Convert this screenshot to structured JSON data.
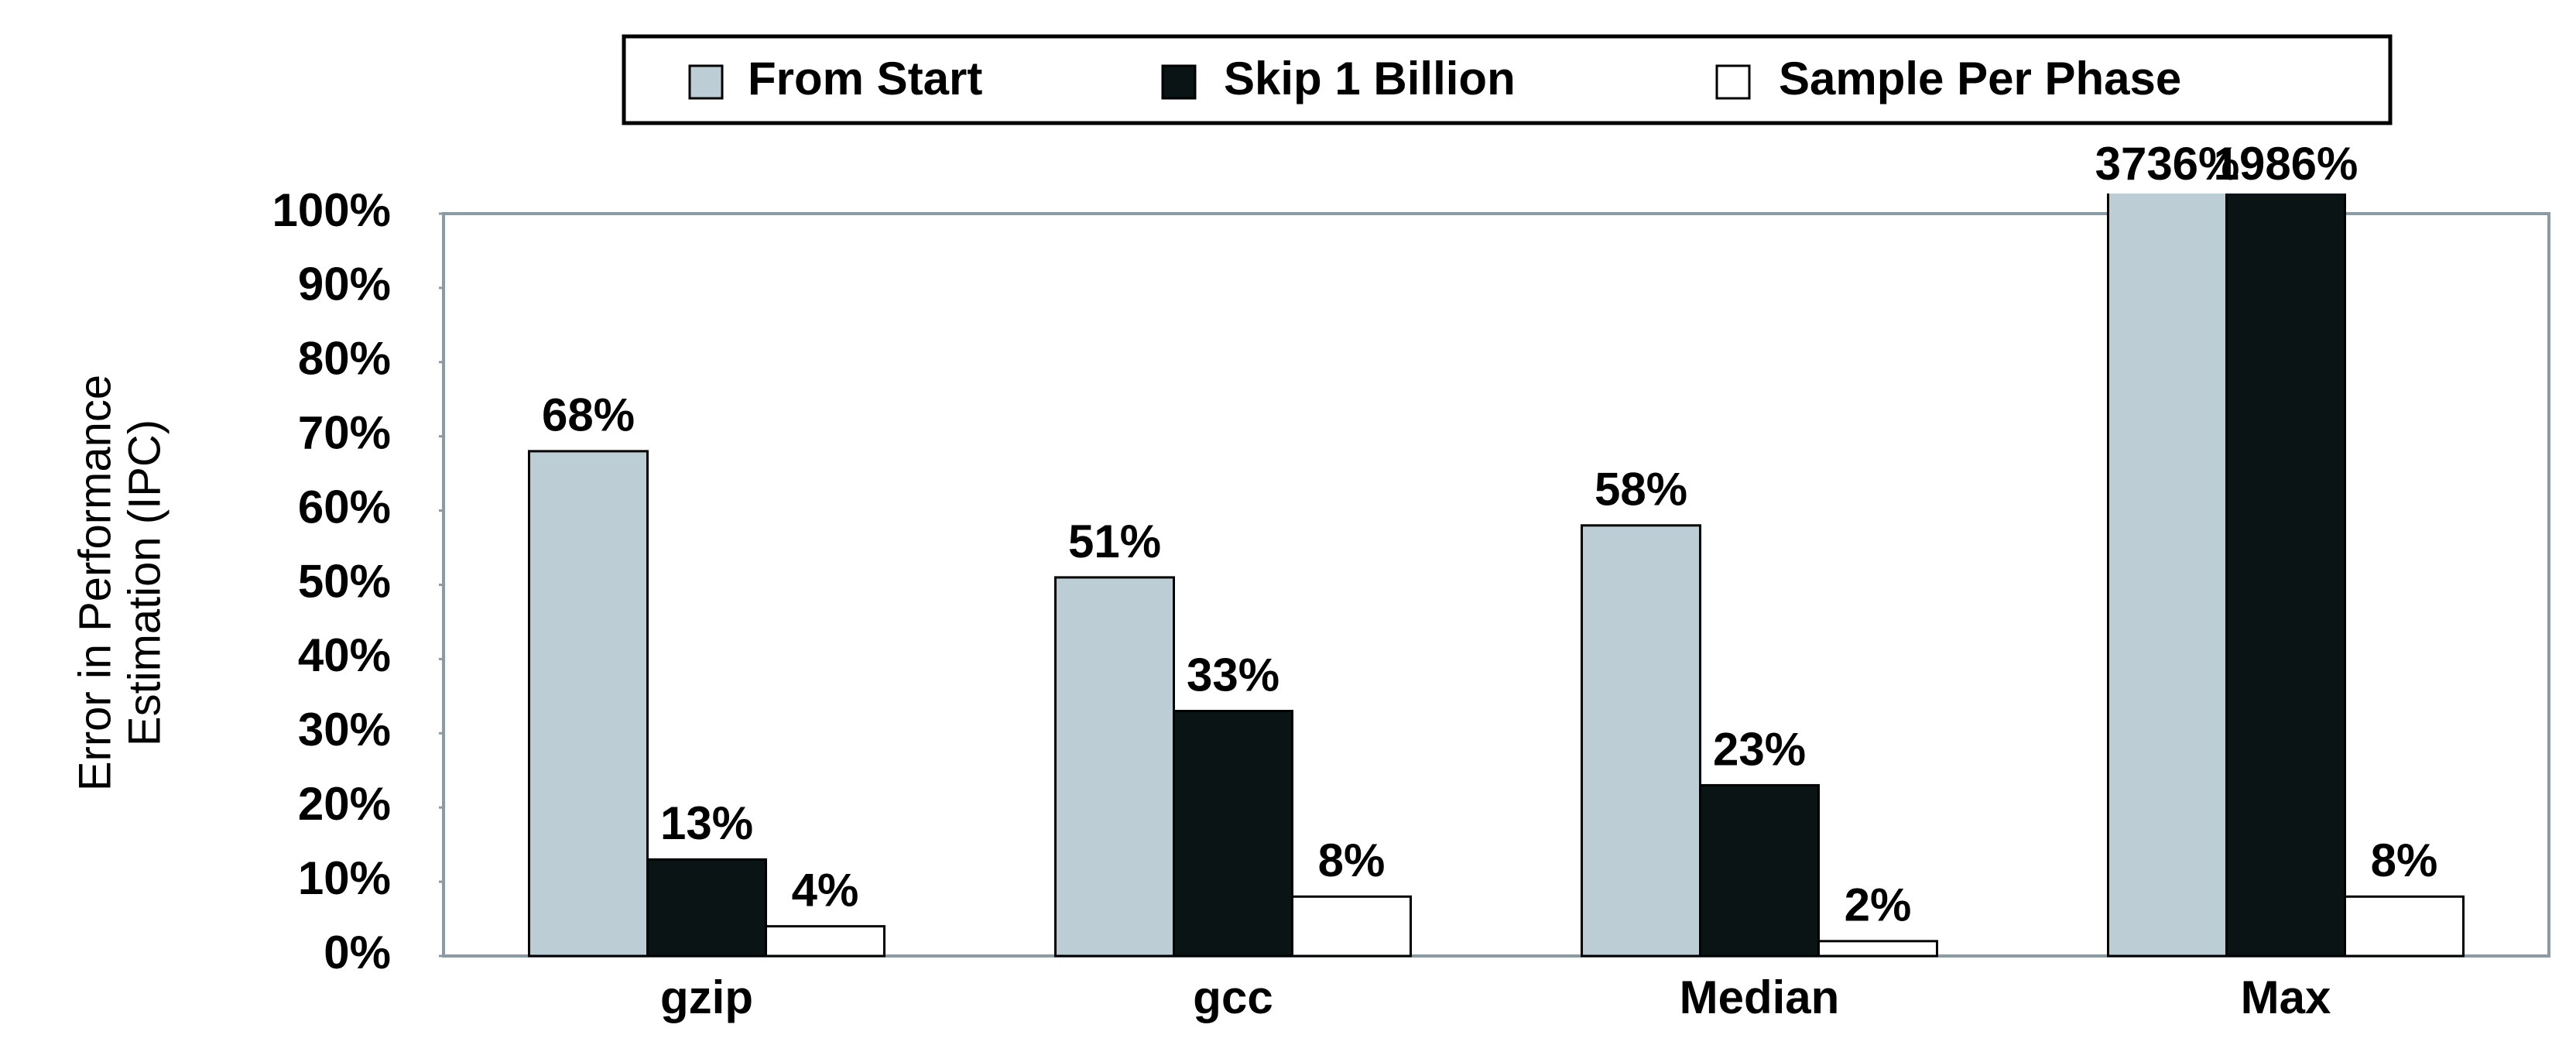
{
  "chart_data": {
    "type": "bar",
    "y_label": [
      "Error in Performance",
      "Estimation (IPC)"
    ],
    "categories": [
      "gzip",
      "gcc",
      "Median",
      "Max"
    ],
    "series": [
      {
        "name": "From Start",
        "color": "#bccdd5",
        "values": [
          68,
          51,
          58,
          3736
        ],
        "value_labels": [
          "68%",
          "51%",
          "58%",
          "3736%"
        ]
      },
      {
        "name": "Skip 1 Billion",
        "color": "#0a1414",
        "values": [
          13,
          33,
          23,
          1986
        ],
        "value_labels": [
          "13%",
          "33%",
          "23%",
          "1986%"
        ]
      },
      {
        "name": "Sample Per Phase",
        "color": "#ffffff",
        "values": [
          4,
          8,
          2,
          8
        ],
        "value_labels": [
          "4%",
          "8%",
          "2%",
          "8%"
        ]
      }
    ],
    "ylim": [
      0,
      100
    ],
    "yticks": [
      {
        "value": 0,
        "label": "0%"
      },
      {
        "value": 10,
        "label": "10%"
      },
      {
        "value": 20,
        "label": "20%"
      },
      {
        "value": 30,
        "label": "30%"
      },
      {
        "value": 40,
        "label": "40%"
      },
      {
        "value": 50,
        "label": "50%"
      },
      {
        "value": 60,
        "label": "60%"
      },
      {
        "value": 70,
        "label": "70%"
      },
      {
        "value": 80,
        "label": "80%"
      },
      {
        "value": 90,
        "label": "90%"
      },
      {
        "value": 100,
        "label": "100%"
      }
    ],
    "legend": "top"
  }
}
